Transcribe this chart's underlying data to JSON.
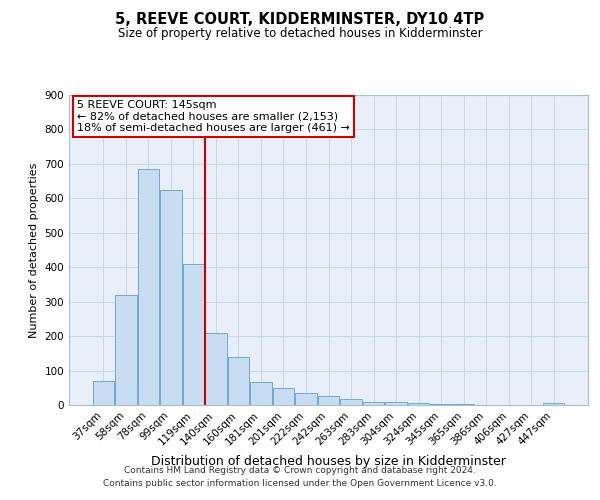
{
  "title": "5, REEVE COURT, KIDDERMINSTER, DY10 4TP",
  "subtitle": "Size of property relative to detached houses in Kidderminster",
  "xlabel": "Distribution of detached houses by size in Kidderminster",
  "ylabel": "Number of detached properties",
  "categories": [
    "37sqm",
    "58sqm",
    "78sqm",
    "99sqm",
    "119sqm",
    "140sqm",
    "160sqm",
    "181sqm",
    "201sqm",
    "222sqm",
    "242sqm",
    "263sqm",
    "283sqm",
    "304sqm",
    "324sqm",
    "345sqm",
    "365sqm",
    "386sqm",
    "406sqm",
    "427sqm",
    "447sqm"
  ],
  "values": [
    70,
    320,
    685,
    625,
    410,
    210,
    140,
    68,
    48,
    35,
    25,
    18,
    10,
    8,
    5,
    3,
    2,
    1,
    0,
    0,
    5
  ],
  "bar_color": "#c9ddf2",
  "bar_edge_color": "#6fa8d6",
  "vline_x": 4.5,
  "property_line_label": "5 REEVE COURT: 145sqm",
  "annotation_line1": "← 82% of detached houses are smaller (2,153)",
  "annotation_line2": "18% of semi-detached houses are larger (461) →",
  "annotation_box_color": "#cc0000",
  "vline_color": "#cc0000",
  "ylim": [
    0,
    900
  ],
  "yticks": [
    0,
    100,
    200,
    300,
    400,
    500,
    600,
    700,
    800,
    900
  ],
  "grid_color": "#c8d8eb",
  "background_color": "#e8eff8",
  "footer_line1": "Contains HM Land Registry data © Crown copyright and database right 2024.",
  "footer_line2": "Contains public sector information licensed under the Open Government Licence v3.0.",
  "title_fontsize": 10.5,
  "subtitle_fontsize": 8.5,
  "xlabel_fontsize": 9,
  "ylabel_fontsize": 8,
  "tick_fontsize": 7.5,
  "annotation_fontsize": 8,
  "footer_fontsize": 6.5
}
